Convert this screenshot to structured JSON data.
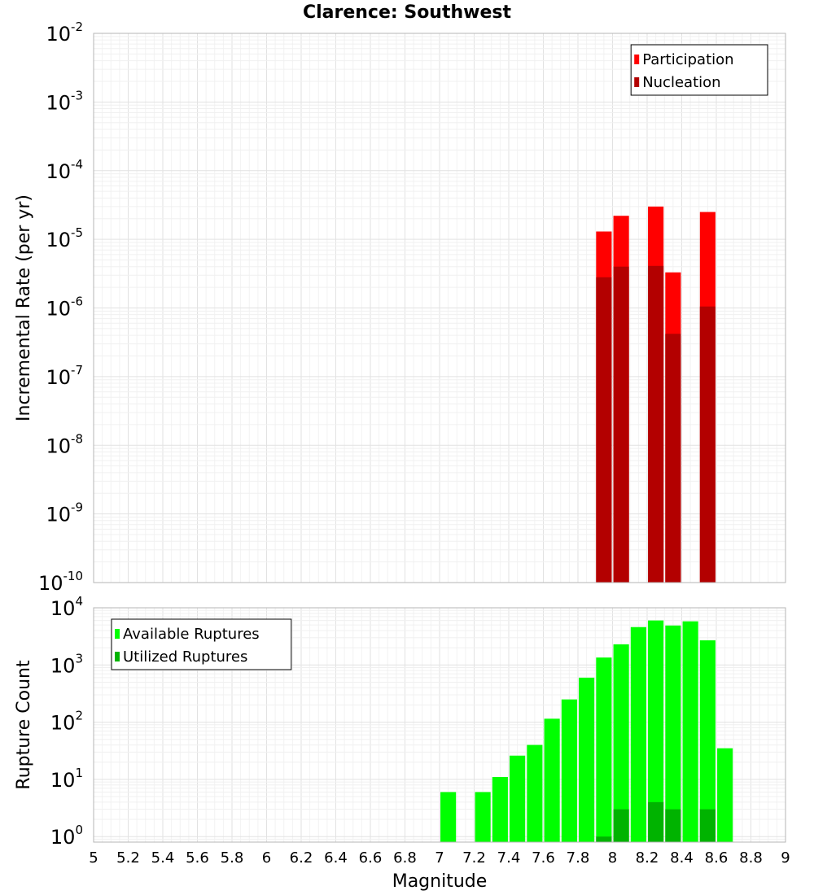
{
  "chart_data": {
    "title": "Clarence: Southwest",
    "xlabel": "Magnitude",
    "x_ticks": [
      "5",
      "5.2",
      "5.4",
      "5.6",
      "5.8",
      "6",
      "6.2",
      "6.4",
      "6.6",
      "6.8",
      "7",
      "7.2",
      "7.4",
      "7.6",
      "7.8",
      "8",
      "8.2",
      "8.4",
      "8.6",
      "8.8",
      "9"
    ],
    "xlim": [
      5,
      9
    ],
    "bin_width": 0.1,
    "panels": [
      {
        "type": "bar",
        "scale": "log",
        "ylabel": "Incremental Rate (per yr)",
        "ylim": [
          1e-10,
          0.01
        ],
        "y_tick_exponents": [
          -10,
          -9,
          -8,
          -7,
          -6,
          -5,
          -4,
          -3,
          -2
        ],
        "legend_position": "top-right",
        "series": [
          {
            "name": "Participation",
            "color": "#ff0000",
            "points": [
              {
                "x": 7.95,
                "y": 1.3e-05
              },
              {
                "x": 8.05,
                "y": 2.2e-05
              },
              {
                "x": 8.25,
                "y": 3e-05
              },
              {
                "x": 8.35,
                "y": 3.3e-06
              },
              {
                "x": 8.55,
                "y": 2.5e-05
              }
            ]
          },
          {
            "name": "Nucleation",
            "color": "#b30000",
            "points": [
              {
                "x": 7.95,
                "y": 2.8e-06
              },
              {
                "x": 8.05,
                "y": 4e-06
              },
              {
                "x": 8.25,
                "y": 4.1e-06
              },
              {
                "x": 8.35,
                "y": 4.2e-07
              },
              {
                "x": 8.55,
                "y": 1.05e-06
              }
            ]
          }
        ]
      },
      {
        "type": "bar",
        "scale": "log",
        "ylabel": "Rupture Count",
        "ylim": [
          0.8,
          10000
        ],
        "y_tick_exponents": [
          0,
          1,
          2,
          3,
          4
        ],
        "legend_position": "top-left",
        "series": [
          {
            "name": "Available Ruptures",
            "color": "#00ff00",
            "points": [
              {
                "x": 7.05,
                "y": 6
              },
              {
                "x": 7.25,
                "y": 6
              },
              {
                "x": 7.35,
                "y": 11
              },
              {
                "x": 7.45,
                "y": 26
              },
              {
                "x": 7.55,
                "y": 40
              },
              {
                "x": 7.65,
                "y": 115
              },
              {
                "x": 7.75,
                "y": 250
              },
              {
                "x": 7.85,
                "y": 600
              },
              {
                "x": 7.95,
                "y": 1350
              },
              {
                "x": 8.05,
                "y": 2300
              },
              {
                "x": 8.15,
                "y": 4600
              },
              {
                "x": 8.25,
                "y": 6000
              },
              {
                "x": 8.35,
                "y": 4900
              },
              {
                "x": 8.45,
                "y": 5800
              },
              {
                "x": 8.55,
                "y": 2700
              },
              {
                "x": 8.65,
                "y": 35
              }
            ]
          },
          {
            "name": "Utilized Ruptures",
            "color": "#00b300",
            "points": [
              {
                "x": 7.95,
                "y": 1
              },
              {
                "x": 8.05,
                "y": 3
              },
              {
                "x": 8.25,
                "y": 4
              },
              {
                "x": 8.35,
                "y": 3
              },
              {
                "x": 8.55,
                "y": 3
              }
            ]
          }
        ]
      }
    ]
  }
}
